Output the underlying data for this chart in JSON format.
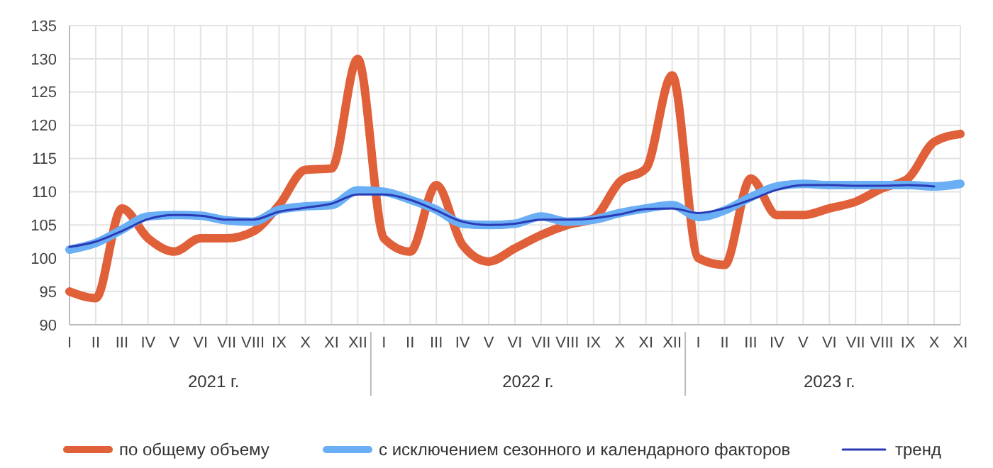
{
  "chart_data": {
    "type": "line",
    "categories": [
      "I",
      "II",
      "III",
      "IV",
      "V",
      "VI",
      "VII",
      "VIII",
      "IX",
      "X",
      "XI",
      "XII",
      "I",
      "II",
      "III",
      "IV",
      "V",
      "VI",
      "VII",
      "VIII",
      "IX",
      "X",
      "XI",
      "XII",
      "I",
      "II",
      "III",
      "IV",
      "V",
      "VI",
      "VII",
      "VIII",
      "IX",
      "X",
      "XI"
    ],
    "series": [
      {
        "name": "по общему объему",
        "color": "#e0603a",
        "values": [
          95,
          94,
          107.5,
          103,
          101,
          103,
          103,
          104,
          108,
          113.3,
          113.5,
          130,
          103,
          101,
          111,
          102,
          99.5,
          101.5,
          103.5,
          105,
          106,
          111.5,
          113.5,
          127.5,
          100,
          99,
          112,
          106.5,
          106.5,
          107.5,
          108.5,
          110.5,
          112,
          117.5,
          118.7
        ]
      },
      {
        "name": "с исключением сезонного и календарного факторов",
        "color": "#6aaef5",
        "values": [
          101.3,
          102.3,
          104.3,
          106.3,
          106.5,
          106.4,
          105.7,
          105.5,
          107.3,
          107.8,
          108,
          110.2,
          110,
          108.8,
          107.3,
          105.2,
          105,
          105.2,
          106.3,
          105.5,
          105.8,
          106.8,
          107.5,
          108,
          106.2,
          107.2,
          109.2,
          110.8,
          111.2,
          111,
          111,
          111,
          111,
          110.8,
          111.2
        ]
      },
      {
        "name": "тренд",
        "color": "#2a3bb5",
        "values": [
          101.7,
          102.5,
          104.1,
          105.9,
          106.5,
          106.4,
          105.8,
          105.8,
          107,
          107.6,
          108.2,
          109.6,
          109.6,
          108.8,
          107.2,
          105.5,
          105,
          105.2,
          105.8,
          105.8,
          106,
          106.6,
          107.4,
          107.5,
          106.8,
          107.5,
          108.8,
          110.3,
          111,
          111,
          110.9,
          110.9,
          111,
          110.8,
          null
        ]
      }
    ],
    "annotations": [
      "2021 г.",
      "2022 г.",
      "2023 г."
    ],
    "ylim": [
      90,
      135
    ],
    "yticks": [
      90,
      95,
      100,
      105,
      110,
      115,
      120,
      125,
      130,
      135
    ],
    "grid": true,
    "legend": "bottom",
    "line_style": "solid"
  }
}
